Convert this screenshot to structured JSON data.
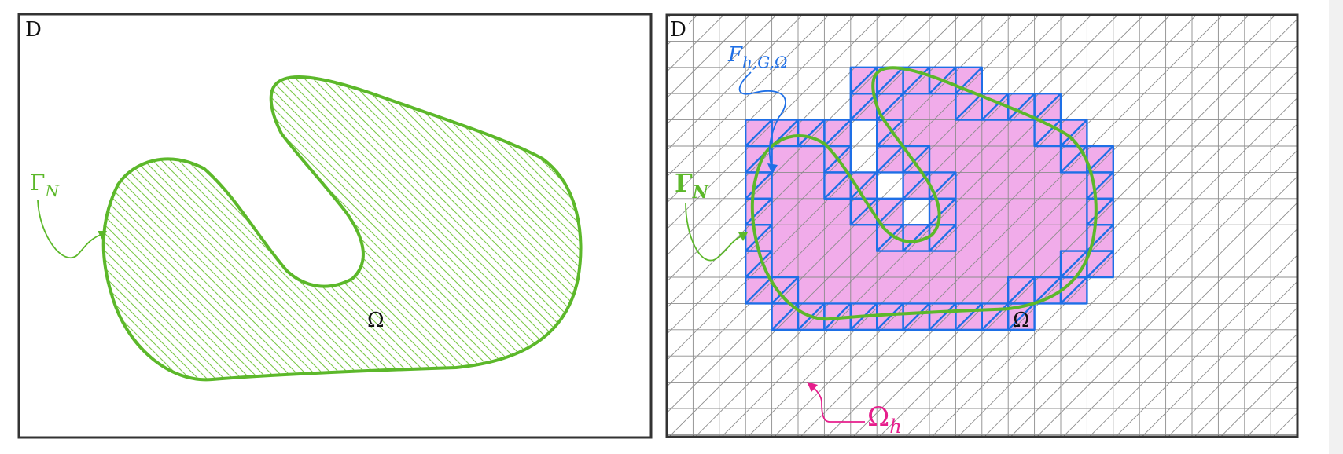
{
  "left_panel": {
    "corner_label": "D",
    "boundary_label": "Γ",
    "boundary_sub": "N",
    "domain_label": "Ω"
  },
  "right_panel": {
    "corner_label": "D",
    "boundary_label": "Γ",
    "boundary_sub": "N",
    "domain_label": "Ω",
    "facet_label": "F",
    "facet_sub": "h,G,Ω",
    "mesh_domain_label": "Ω",
    "mesh_domain_sub": "h"
  },
  "colors": {
    "frame": "#333333",
    "boundary_green": "#5cb82a",
    "hatch_green": "#7cc84a",
    "mesh_gray": "#8c8c8c",
    "active_cells": "#ee9ee6",
    "ghost_facets_blue": "#1e6fe6",
    "omega_h_magenta": "#e61e8c"
  }
}
